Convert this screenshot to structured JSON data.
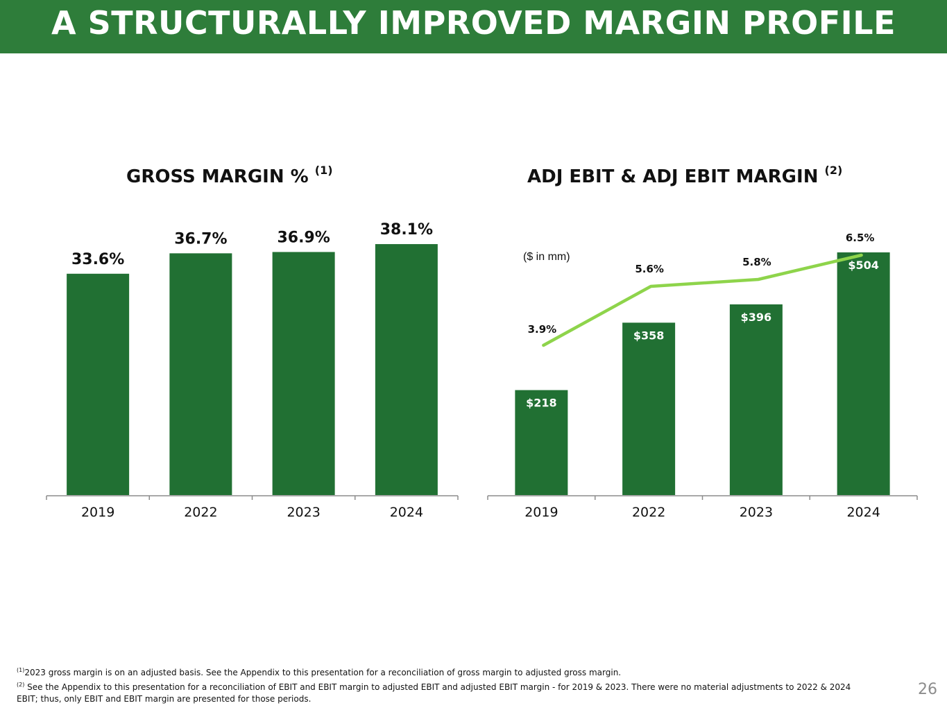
{
  "header": {
    "title": "A STRUCTURALLY IMPROVED MARGIN PROFILE"
  },
  "colors": {
    "header_bg": "#2e7d3a",
    "bar": "#217033",
    "line": "#8ed44b",
    "axis": "#8c8c8c"
  },
  "chart_data": [
    {
      "type": "bar",
      "title": "GROSS MARGIN %",
      "title_note": "(1)",
      "categories": [
        "2019",
        "2022",
        "2023",
        "2024"
      ],
      "values": [
        33.6,
        36.7,
        36.9,
        38.1
      ],
      "value_labels": [
        "33.6%",
        "36.7%",
        "36.9%",
        "38.1%"
      ],
      "ylim": [
        0,
        42
      ],
      "xlabel": "",
      "ylabel": "",
      "grid": false
    },
    {
      "type": "bar",
      "title": "ADJ EBIT & ADJ EBIT MARGIN",
      "title_note": "(2)",
      "unit_note": "($ in mm)",
      "categories": [
        "2019",
        "2022",
        "2023",
        "2024"
      ],
      "series": [
        {
          "name": "Adj EBIT",
          "type": "bar",
          "values": [
            218,
            358,
            396,
            504
          ],
          "labels": [
            "$218",
            "$358",
            "$396",
            "$504"
          ]
        },
        {
          "name": "Adj EBIT Margin",
          "type": "line",
          "values": [
            3.9,
            5.6,
            5.8,
            6.5
          ],
          "labels": [
            "3.9%",
            "5.6%",
            "5.8%",
            "6.5%"
          ]
        }
      ],
      "ylim": [
        0,
        504
      ],
      "grid": false
    }
  ],
  "footnotes": {
    "note1_marker": "(1)",
    "note1_text": "2023 gross margin is on an adjusted basis.  See the Appendix to this presentation for a reconciliation of gross margin to adjusted gross margin.",
    "note2_marker": "(2)",
    "note2_text": " See the Appendix to this presentation for a reconciliation of EBIT and EBIT margin to adjusted EBIT and adjusted EBIT margin - for 2019 & 2023. There were no material adjustments to 2022 & 2024 EBIT; thus, only EBIT and EBIT margin are presented for those periods."
  },
  "page_number": "26"
}
